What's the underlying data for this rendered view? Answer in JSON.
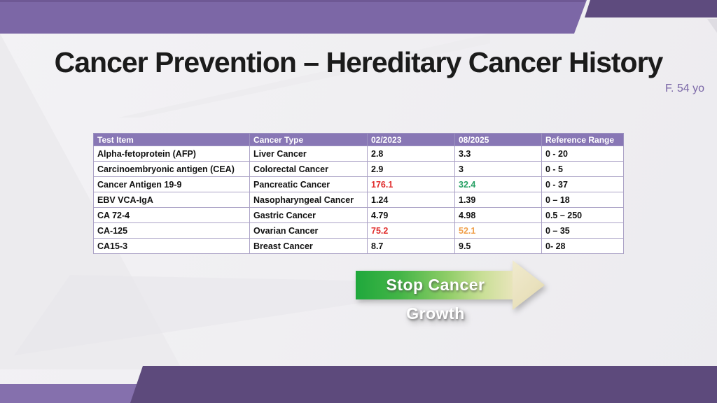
{
  "slide": {
    "title": "Cancer Prevention – Hereditary Cancer History",
    "subtitle": "F. 54 yo"
  },
  "table": {
    "columns": [
      "Test Item",
      "Cancer Type",
      "02/2023",
      "08/2025",
      "Reference Range"
    ],
    "rows": [
      {
        "test": "Alpha-fetoprotein (AFP)",
        "cancer": "Liver Cancer",
        "v1": "2.8",
        "v2": "3.3",
        "range": "0 - 20"
      },
      {
        "test": "Carcinoembryonic antigen (CEA)",
        "cancer": "Colorectal Cancer",
        "v1": "2.9",
        "v2": "3",
        "range": "0 - 5"
      },
      {
        "test": "Cancer Antigen 19-9",
        "cancer": "Pancreatic Cancer",
        "v1": "176.1",
        "v2": "32.4",
        "range": "0 - 37"
      },
      {
        "test": "EBV VCA-IgA",
        "cancer": "Nasopharyngeal Cancer",
        "v1": "1.24",
        "v2": "1.39",
        "range": "0 – 18"
      },
      {
        "test": "CA 72-4",
        "cancer": "Gastric Cancer",
        "v1": "4.79",
        "v2": "4.98",
        "range": "0.5 – 250"
      },
      {
        "test": "CA-125",
        "cancer": "Ovarian Cancer",
        "v1": "75.2",
        "v2": "52.1",
        "range": "0 – 35"
      },
      {
        "test": "CA15-3",
        "cancer": "Breast Cancer",
        "v1": "8.7",
        "v2": "9.5",
        "range": "0- 28"
      }
    ]
  },
  "arrow": {
    "label": "Stop Cancer Growth"
  },
  "colors": {
    "band_purple": "#7C67A6",
    "band_dark_purple": "#5E4B7E",
    "footer_light_purple": "#8570AD",
    "table_header_bg": "#8877B5",
    "value_abnormal_red": "#E02B2B",
    "value_improved_green": "#27A064",
    "value_elevated_orange": "#F0A04C",
    "arrow_green": "#1FA83C",
    "arrow_head_cream": "#E9E1BD"
  }
}
